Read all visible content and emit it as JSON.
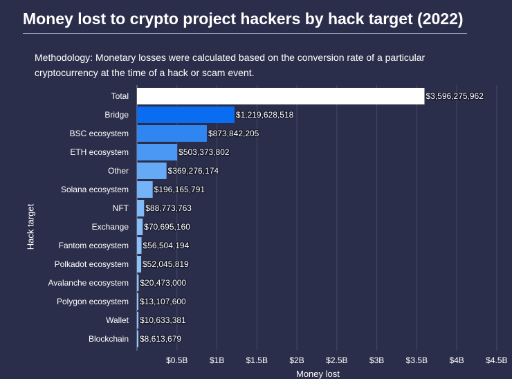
{
  "chart_data": {
    "type": "bar",
    "orientation": "horizontal",
    "title": "Money lost to crypto project hackers by hack target (2022)",
    "methodology": "Methodology: Monetary losses were calculated based on the conversion rate of a particular cryptocurrency at the time of a hack or scam event.",
    "xlabel": "Money lost",
    "ylabel": "Hack target",
    "categories": [
      "Total",
      "Bridge",
      "BSC ecosystem",
      "ETH ecosystem",
      "Other",
      "Solana ecosystem",
      "NFT",
      "Exchange",
      "Fantom ecosystem",
      "Polkadot ecosystem",
      "Avalanche ecosystem",
      "Polygon ecosystem",
      "Wallet",
      "Blockchain"
    ],
    "values": [
      3596275962,
      1219628518,
      873842205,
      503373802,
      369276174,
      196165791,
      88773763,
      70695160,
      56504194,
      52045819,
      20473000,
      13107600,
      10633381,
      8613679
    ],
    "value_labels": [
      "$3,596,275,962",
      "$1,219,628,518",
      "$873,842,205",
      "$503,373,802",
      "$369,276,174",
      "$196,165,791",
      "$88,773,763",
      "$70,695,160",
      "$56,504,194",
      "$52,045,819",
      "$20,473,000",
      "$13,107,600",
      "$10,633,381",
      "$8,613,679"
    ],
    "bar_colors": [
      "#ffffff",
      "#0a6cf0",
      "#2f86f0",
      "#4a98f3",
      "#66aaf6",
      "#74b3f7",
      "#80baf8",
      "#86bef8",
      "#8ac1f8",
      "#8cc2f8",
      "#90c4f9",
      "#92c5f9",
      "#94c6f9",
      "#95c7f9"
    ],
    "xticks": [
      {
        "value": 500000000,
        "label": "$0.5B"
      },
      {
        "value": 1000000000,
        "label": "$1B"
      },
      {
        "value": 1500000000,
        "label": "$1.5B"
      },
      {
        "value": 2000000000,
        "label": "$2B"
      },
      {
        "value": 2500000000,
        "label": "$2.5B"
      },
      {
        "value": 3000000000,
        "label": "$3B"
      },
      {
        "value": 3500000000,
        "label": "$3.5B"
      },
      {
        "value": 4000000000,
        "label": "$4B"
      },
      {
        "value": 4500000000,
        "label": "$4.5B"
      }
    ],
    "xlim": [
      0,
      4700000000
    ],
    "grid": true
  }
}
